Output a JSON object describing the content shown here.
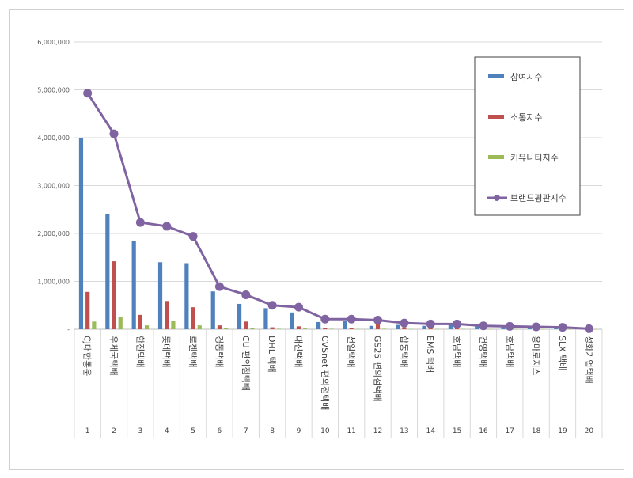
{
  "chart_data": {
    "type": "bar",
    "categories": [
      "CJ대한통운",
      "우체국택배",
      "한진택배",
      "롯데택배",
      "로젠택배",
      "경동택배",
      "CU 편의점택배",
      "DHL 택배",
      "대신택배",
      "CVSnet 편의점택배",
      "천일택배",
      "GS25 편의점택배",
      "합동택배",
      "EMS 택배",
      "호남택배",
      "건영택배",
      "호남택배",
      "용마로지스",
      "SLX 택배",
      "성화기업택배"
    ],
    "ranks": [
      "1",
      "2",
      "3",
      "4",
      "5",
      "6",
      "7",
      "8",
      "9",
      "10",
      "11",
      "12",
      "13",
      "14",
      "15",
      "16",
      "17",
      "18",
      "19",
      "20"
    ],
    "series": [
      {
        "name": "참여지수",
        "kind": "bar",
        "color": "#4f81bd",
        "values": [
          4000000,
          2400000,
          1850000,
          1400000,
          1380000,
          790000,
          530000,
          440000,
          350000,
          150000,
          180000,
          70000,
          90000,
          70000,
          90000,
          60000,
          50000,
          60000,
          40000,
          20000
        ]
      },
      {
        "name": "소통지수",
        "kind": "bar",
        "color": "#c0504d",
        "values": [
          780000,
          1420000,
          300000,
          590000,
          460000,
          80000,
          160000,
          40000,
          60000,
          30000,
          20000,
          120000,
          40000,
          30000,
          30000,
          10000,
          20000,
          20000,
          10000,
          5000
        ]
      },
      {
        "name": "커뮤니티지수",
        "kind": "bar",
        "color": "#9bbb59",
        "values": [
          160000,
          250000,
          80000,
          170000,
          80000,
          20000,
          30000,
          10000,
          15000,
          10000,
          5000,
          10000,
          5000,
          5000,
          5000,
          3000,
          3000,
          3000,
          2000,
          1000
        ]
      },
      {
        "name": "브랜드평판지수",
        "kind": "line",
        "color": "#8064a2",
        "values": [
          4930000,
          4080000,
          2230000,
          2150000,
          1940000,
          890000,
          720000,
          500000,
          460000,
          210000,
          210000,
          190000,
          130000,
          110000,
          110000,
          70000,
          60000,
          50000,
          40000,
          10000
        ]
      }
    ],
    "yticks": [
      "6,000,000",
      "5,000,000",
      "4,000,000",
      "3,000,000",
      "2,000,000",
      "1,000,000",
      "-"
    ],
    "ylim": [
      0,
      6000000
    ],
    "legend_position": "right"
  }
}
